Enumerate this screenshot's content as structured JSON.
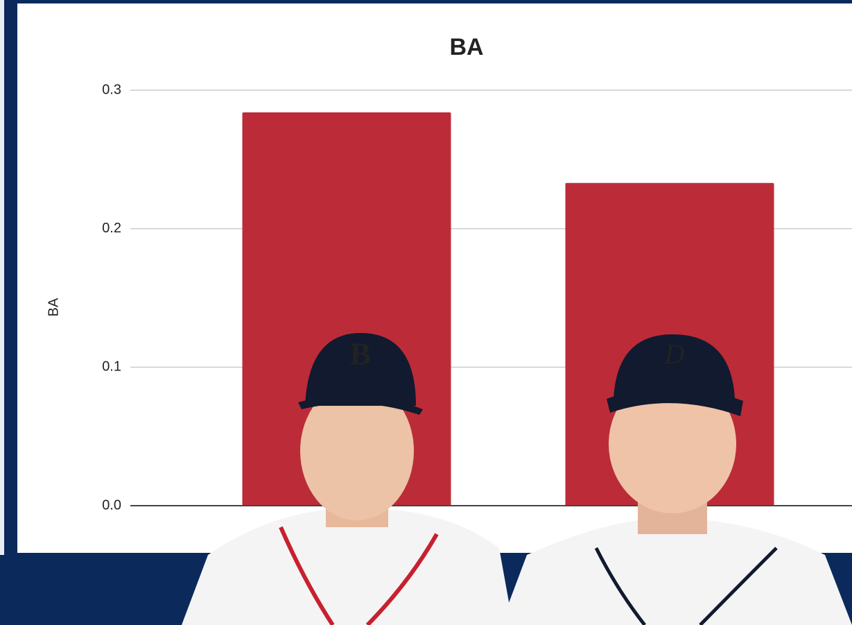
{
  "chart_data": {
    "type": "bar",
    "title": "BA",
    "y_label": "BA",
    "categories": [
      null,
      null
    ],
    "values": [
      0.284,
      0.233
    ],
    "color": "#bb2c38",
    "ylim": [
      0,
      0.3
    ],
    "yticks": [
      {
        "value": 0,
        "label": "0.0"
      },
      0.1,
      0.2,
      0.3
    ],
    "grid": true
  }
}
